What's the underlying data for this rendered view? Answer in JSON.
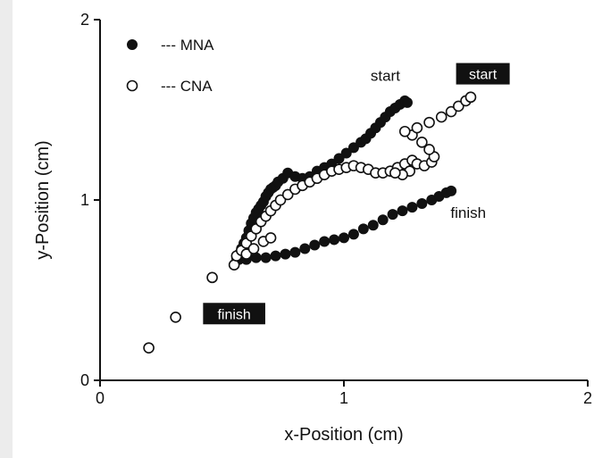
{
  "chart_data": {
    "type": "scatter",
    "title": "",
    "xlabel": "x-Position (cm)",
    "ylabel": "y-Position (cm)",
    "xlim": [
      0,
      2
    ],
    "ylim": [
      0,
      2
    ],
    "xticks": [
      "0",
      "1",
      "2"
    ],
    "yticks": [
      "0",
      "1",
      "2"
    ],
    "grid": false,
    "legend_position": "top-left",
    "series": [
      {
        "name": "MNA",
        "legend_label": "--- MNA",
        "marker": "filled-circle",
        "color": "#111111",
        "points": [
          [
            0.56,
            0.68
          ],
          [
            0.57,
            0.7
          ],
          [
            0.58,
            0.73
          ],
          [
            0.59,
            0.76
          ],
          [
            0.6,
            0.79
          ],
          [
            0.61,
            0.83
          ],
          [
            0.62,
            0.87
          ],
          [
            0.63,
            0.9
          ],
          [
            0.64,
            0.93
          ],
          [
            0.65,
            0.95
          ],
          [
            0.66,
            0.97
          ],
          [
            0.67,
            0.99
          ],
          [
            0.68,
            1.02
          ],
          [
            0.69,
            1.04
          ],
          [
            0.7,
            1.06
          ],
          [
            0.71,
            1.07
          ],
          [
            0.72,
            1.08
          ],
          [
            0.73,
            1.1
          ],
          [
            0.75,
            1.12
          ],
          [
            0.77,
            1.15
          ],
          [
            0.8,
            1.13
          ],
          [
            0.83,
            1.12
          ],
          [
            0.86,
            1.13
          ],
          [
            0.89,
            1.16
          ],
          [
            0.92,
            1.18
          ],
          [
            0.95,
            1.2
          ],
          [
            0.98,
            1.23
          ],
          [
            1.01,
            1.26
          ],
          [
            1.04,
            1.29
          ],
          [
            1.07,
            1.32
          ],
          [
            1.09,
            1.34
          ],
          [
            1.11,
            1.37
          ],
          [
            1.13,
            1.4
          ],
          [
            1.15,
            1.43
          ],
          [
            1.17,
            1.46
          ],
          [
            1.19,
            1.49
          ],
          [
            1.21,
            1.51
          ],
          [
            1.23,
            1.53
          ],
          [
            1.25,
            1.55
          ],
          [
            1.26,
            1.54
          ],
          [
            0.57,
            0.67
          ],
          [
            0.6,
            0.67
          ],
          [
            0.64,
            0.68
          ],
          [
            0.68,
            0.68
          ],
          [
            0.72,
            0.69
          ],
          [
            0.76,
            0.7
          ],
          [
            0.8,
            0.71
          ],
          [
            0.84,
            0.73
          ],
          [
            0.88,
            0.75
          ],
          [
            0.92,
            0.77
          ],
          [
            0.96,
            0.78
          ],
          [
            1.0,
            0.79
          ],
          [
            1.04,
            0.81
          ],
          [
            1.08,
            0.84
          ],
          [
            1.12,
            0.86
          ],
          [
            1.16,
            0.89
          ],
          [
            1.2,
            0.92
          ],
          [
            1.24,
            0.94
          ],
          [
            1.28,
            0.96
          ],
          [
            1.32,
            0.98
          ],
          [
            1.36,
            1.0
          ],
          [
            1.39,
            1.02
          ],
          [
            1.42,
            1.04
          ],
          [
            1.44,
            1.05
          ]
        ]
      },
      {
        "name": "CNA",
        "legend_label": "--- CNA",
        "marker": "open-circle",
        "color": "#111111",
        "points": [
          [
            0.2,
            0.18
          ],
          [
            0.31,
            0.35
          ],
          [
            0.46,
            0.57
          ],
          [
            0.55,
            0.64
          ],
          [
            0.56,
            0.69
          ],
          [
            0.58,
            0.72
          ],
          [
            0.6,
            0.76
          ],
          [
            0.62,
            0.8
          ],
          [
            0.64,
            0.84
          ],
          [
            0.66,
            0.88
          ],
          [
            0.68,
            0.91
          ],
          [
            0.7,
            0.94
          ],
          [
            0.72,
            0.97
          ],
          [
            0.74,
            1.0
          ],
          [
            0.77,
            1.03
          ],
          [
            0.8,
            1.06
          ],
          [
            0.83,
            1.08
          ],
          [
            0.86,
            1.1
          ],
          [
            0.89,
            1.12
          ],
          [
            0.92,
            1.14
          ],
          [
            0.95,
            1.16
          ],
          [
            0.98,
            1.17
          ],
          [
            1.01,
            1.18
          ],
          [
            1.04,
            1.19
          ],
          [
            1.07,
            1.18
          ],
          [
            1.1,
            1.17
          ],
          [
            1.13,
            1.15
          ],
          [
            1.16,
            1.15
          ],
          [
            1.19,
            1.16
          ],
          [
            1.22,
            1.18
          ],
          [
            1.25,
            1.2
          ],
          [
            1.28,
            1.22
          ],
          [
            1.3,
            1.2
          ],
          [
            1.33,
            1.19
          ],
          [
            1.36,
            1.21
          ],
          [
            1.37,
            1.24
          ],
          [
            1.35,
            1.28
          ],
          [
            1.32,
            1.32
          ],
          [
            1.28,
            1.36
          ],
          [
            1.25,
            1.38
          ],
          [
            1.3,
            1.4
          ],
          [
            1.35,
            1.43
          ],
          [
            1.4,
            1.46
          ],
          [
            1.44,
            1.49
          ],
          [
            1.47,
            1.52
          ],
          [
            1.5,
            1.55
          ],
          [
            1.52,
            1.57
          ],
          [
            1.27,
            1.16
          ],
          [
            1.24,
            1.14
          ],
          [
            1.21,
            1.15
          ],
          [
            0.6,
            0.7
          ],
          [
            0.63,
            0.73
          ],
          [
            0.67,
            0.77
          ],
          [
            0.7,
            0.79
          ]
        ]
      }
    ],
    "annotations": [
      {
        "text": "start",
        "x": 1.17,
        "y": 1.69,
        "style": "plain"
      },
      {
        "text": "start",
        "x": 1.57,
        "y": 1.7,
        "style": "inverted"
      },
      {
        "text": "finish",
        "x": 1.51,
        "y": 0.93,
        "style": "plain"
      },
      {
        "text": "finish",
        "x": 0.55,
        "y": 0.37,
        "style": "inverted"
      }
    ]
  }
}
